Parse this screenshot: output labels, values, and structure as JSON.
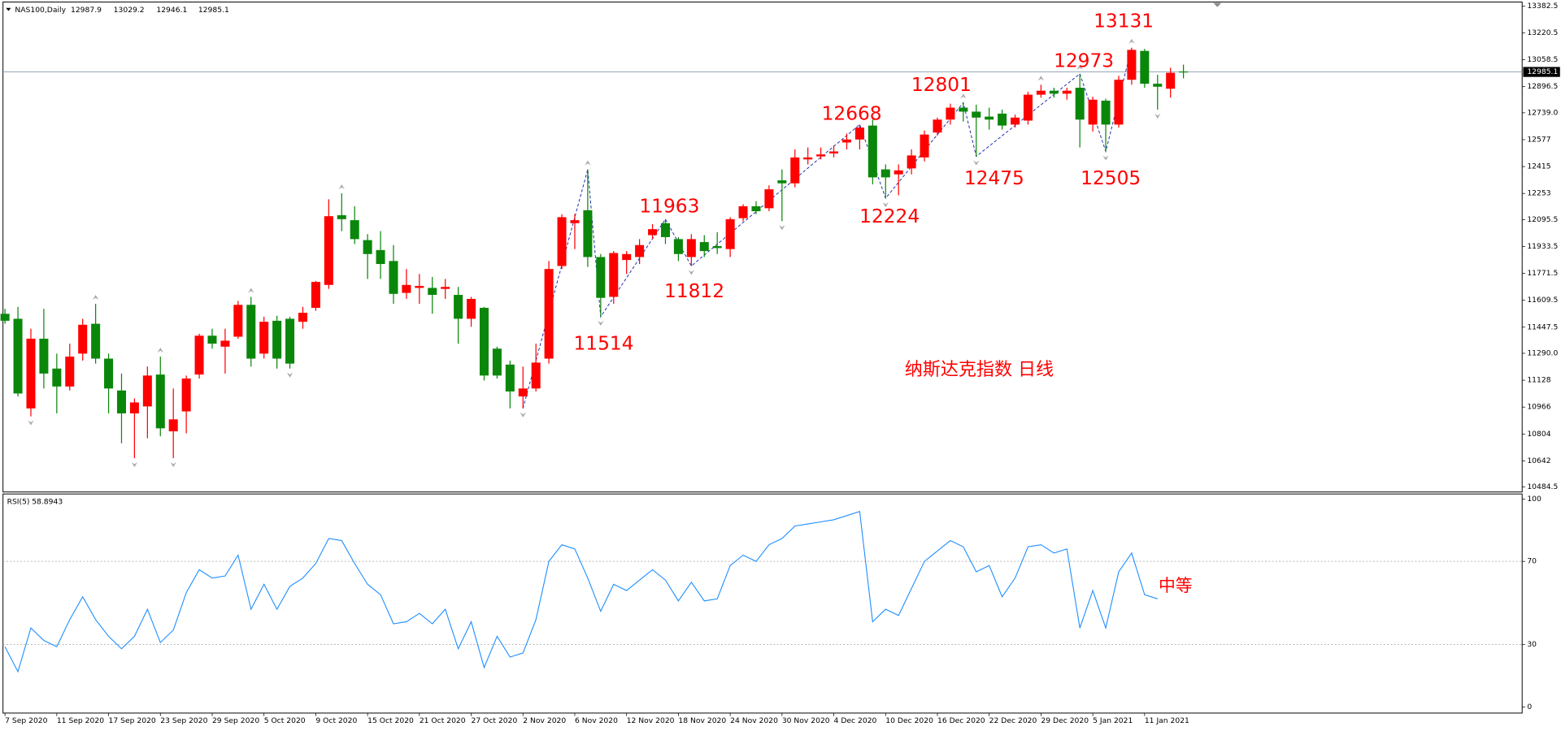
{
  "chart_data": [
    {
      "type": "candlestick",
      "title": "NAS100,Daily",
      "chart_label": "纳斯达克指数 日线",
      "annotations": [
        "13131",
        "12973",
        "12801",
        "12668",
        "11963",
        "11812",
        "11514",
        "12224",
        "12475",
        "12505"
      ],
      "up_color": "#ff0000",
      "down_color": "#0a870a",
      "categories": [
        "7 Sep 2020",
        null,
        null,
        null,
        "11 Sep 2020",
        null,
        null,
        null,
        "17 Sep 2020",
        null,
        null,
        null,
        "23 Sep 2020",
        null,
        null,
        null,
        "29 Sep 2020",
        null,
        null,
        null,
        "5 Oct 2020",
        null,
        null,
        null,
        "9 Oct 2020",
        null,
        null,
        null,
        "15 Oct 2020",
        null,
        null,
        null,
        "21 Oct 2020",
        null,
        null,
        null,
        "27 Oct 2020",
        null,
        null,
        null,
        "2 Nov 2020",
        null,
        null,
        null,
        "6 Nov 2020",
        null,
        null,
        null,
        "12 Nov 2020",
        null,
        null,
        null,
        "18 Nov 2020",
        null,
        null,
        null,
        "24 Nov 2020",
        null,
        null,
        null,
        "30 Nov 2020",
        null,
        null,
        null,
        "4 Dec 2020",
        null,
        null,
        null,
        "10 Dec 2020",
        null,
        null,
        null,
        "16 Dec 2020",
        null,
        null,
        null,
        "22 Dec 2020",
        null,
        null,
        null,
        "29 Dec 2020",
        null,
        null,
        null,
        "5 Jan 2021",
        null,
        null,
        null,
        "11 Jan 2021",
        null,
        null,
        null
      ],
      "open": [
        11528,
        11498,
        10958,
        11378,
        11198,
        11090,
        11288,
        11468,
        11258,
        11066,
        10928,
        10970,
        11162,
        10820,
        10940,
        11162,
        11396,
        11330,
        11390,
        11582,
        11288,
        11486,
        11498,
        11480,
        11564,
        11702,
        12122,
        12092,
        11972,
        11912,
        11846,
        11654,
        11684,
        11684,
        11678,
        11642,
        11498,
        11564,
        11318,
        11222,
        11030,
        11078,
        11258,
        11816,
        12074,
        12152,
        11870,
        11630,
        11852,
        11870,
        12002,
        12074,
        11978,
        11870,
        11960,
        11936,
        11918,
        12104,
        12176,
        12164,
        12332,
        12314,
        12458,
        12476,
        12494,
        12560,
        12578,
        12662,
        12398,
        12368,
        12404,
        12470,
        12620,
        12698,
        12770,
        12746,
        12716,
        12734,
        12668,
        12692,
        12848,
        12872,
        12854,
        12890,
        12668,
        12812,
        12668,
        12938,
        13112,
        12914,
        12884,
        12987.9
      ],
      "high": [
        11558,
        11570,
        11438,
        11558,
        11288,
        11348,
        11498,
        11588,
        11288,
        11168,
        11018,
        11210,
        11270,
        11078,
        11156,
        11408,
        11438,
        11438,
        11606,
        11630,
        11510,
        11516,
        11510,
        11570,
        11726,
        12218,
        12254,
        12176,
        12008,
        12026,
        11942,
        11798,
        11768,
        11750,
        11738,
        11690,
        11630,
        11570,
        11330,
        11246,
        11210,
        11348,
        11846,
        12128,
        12128,
        12398,
        11888,
        11906,
        11906,
        11978,
        12068,
        12098,
        11990,
        12008,
        12002,
        12020,
        12110,
        12188,
        12206,
        12302,
        12398,
        12518,
        12530,
        12530,
        12542,
        12614,
        12668,
        12698,
        12428,
        12428,
        12518,
        12632,
        12710,
        12794,
        12800,
        12788,
        12770,
        12758,
        12728,
        12866,
        12908,
        12890,
        12890,
        12974,
        12836,
        12824,
        12962,
        13131,
        13124,
        12968,
        13010,
        13029.2
      ],
      "low": [
        11468,
        11030,
        10910,
        11078,
        10928,
        11066,
        11246,
        11228,
        10928,
        10748,
        10658,
        10778,
        10790,
        10658,
        10808,
        11138,
        11318,
        11168,
        11378,
        11210,
        11258,
        11198,
        11198,
        11438,
        11546,
        11678,
        12026,
        11948,
        11738,
        11738,
        11588,
        11618,
        11588,
        11528,
        11618,
        11348,
        11450,
        11126,
        11138,
        10958,
        10958,
        11060,
        11228,
        11798,
        11918,
        11810,
        11510,
        11588,
        11768,
        11828,
        11978,
        11948,
        11846,
        11816,
        11870,
        11888,
        11870,
        12086,
        12128,
        12146,
        12086,
        12290,
        12428,
        12458,
        12470,
        12518,
        12518,
        12308,
        12224,
        12242,
        12368,
        12446,
        12602,
        12668,
        12686,
        12476,
        12638,
        12638,
        12650,
        12668,
        12830,
        12830,
        12818,
        12530,
        12626,
        12506,
        12650,
        12908,
        12890,
        12758,
        12830,
        12946.1
      ],
      "close": [
        11486,
        11048,
        11378,
        11168,
        11090,
        11270,
        11462,
        11258,
        11078,
        10928,
        10994,
        11156,
        10838,
        10892,
        11138,
        11396,
        11348,
        11366,
        11582,
        11258,
        11480,
        11258,
        11228,
        11534,
        11720,
        12116,
        12098,
        11978,
        11888,
        11828,
        11648,
        11702,
        11696,
        11642,
        11690,
        11498,
        11618,
        11156,
        11156,
        11060,
        11078,
        11234,
        11798,
        12110,
        12092,
        11870,
        11624,
        11894,
        11888,
        11942,
        12038,
        11990,
        11888,
        11978,
        11906,
        11924,
        12098,
        12176,
        12146,
        12278,
        12314,
        12470,
        12470,
        12488,
        12506,
        12578,
        12650,
        12350,
        12350,
        12392,
        12482,
        12608,
        12698,
        12770,
        12746,
        12710,
        12698,
        12662,
        12710,
        12848,
        12872,
        12854,
        12872,
        12698,
        12818,
        12668,
        12938,
        13118,
        12914,
        12896,
        12980,
        12985.1
      ],
      "ylim": [
        10454.5,
        13406.5
      ],
      "yticks": [
        13382.5,
        13220.5,
        13058.5,
        12896.5,
        {
          "value": 12739,
          "label": "12739.0"
        },
        12577,
        12415,
        12253,
        12095.5,
        11933.5,
        11771.5,
        11609.5,
        11447.5,
        {
          "value": 11290,
          "label": "11290.0"
        },
        11128,
        10966,
        10804,
        10642,
        10484.5
      ]
    },
    {
      "type": "line",
      "title": "RSI(5)",
      "last_value": 58.8943,
      "annotation": "中等",
      "color": "#1e8fff",
      "values": [
        29,
        17,
        38,
        32,
        29,
        42,
        53,
        42,
        34,
        28,
        34,
        47,
        31,
        37,
        55,
        66,
        62,
        63,
        73,
        47,
        59,
        47,
        58,
        62,
        69,
        81,
        80,
        69,
        59,
        54,
        40,
        41,
        45,
        40,
        47,
        28,
        41,
        19,
        34,
        24,
        26,
        42,
        70,
        78,
        76,
        62,
        46,
        59,
        56,
        61,
        66,
        61,
        51,
        60,
        51,
        52,
        68,
        73,
        70,
        78,
        81,
        87,
        88,
        89,
        90,
        92,
        94,
        41,
        47,
        44,
        57,
        70,
        75,
        80,
        77,
        65,
        68,
        53,
        62,
        77,
        78,
        74,
        76,
        38,
        56,
        38,
        65,
        74,
        54,
        52,
        null,
        null
      ],
      "ylim": [
        -2.9,
        102.4
      ],
      "yticks": [
        100,
        70,
        30,
        0
      ],
      "levels": [
        70,
        30
      ]
    }
  ]
}
